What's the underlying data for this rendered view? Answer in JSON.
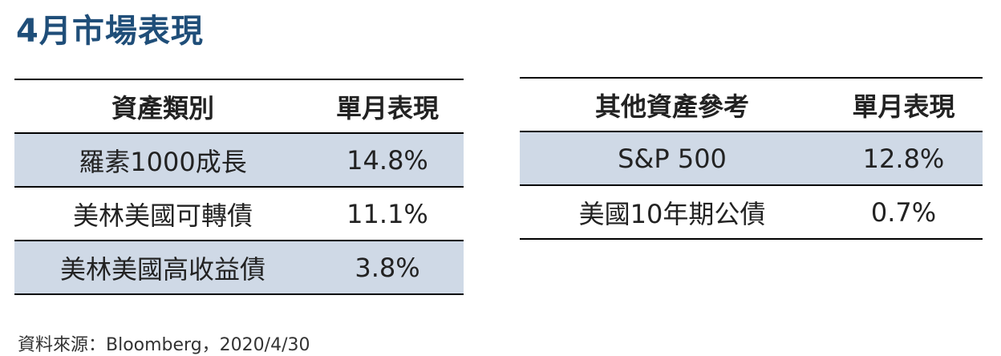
{
  "title": "4月市場表現",
  "left_table": {
    "header": [
      "資產類別",
      "單月表現"
    ],
    "rows": [
      [
        "羅素1000成長",
        "14.8%"
      ],
      [
        "美林美國可轉債",
        "11.1%"
      ],
      [
        "美林美國高收益債",
        "3.8%"
      ]
    ]
  },
  "right_table": {
    "header": [
      "其他資產參考",
      "單月表現"
    ],
    "rows": [
      [
        "S&P 500",
        "12.8%"
      ],
      [
        "美國10年期公債",
        "0.7%"
      ]
    ]
  },
  "source": "資料來源：Bloomberg，2020/4/30"
}
